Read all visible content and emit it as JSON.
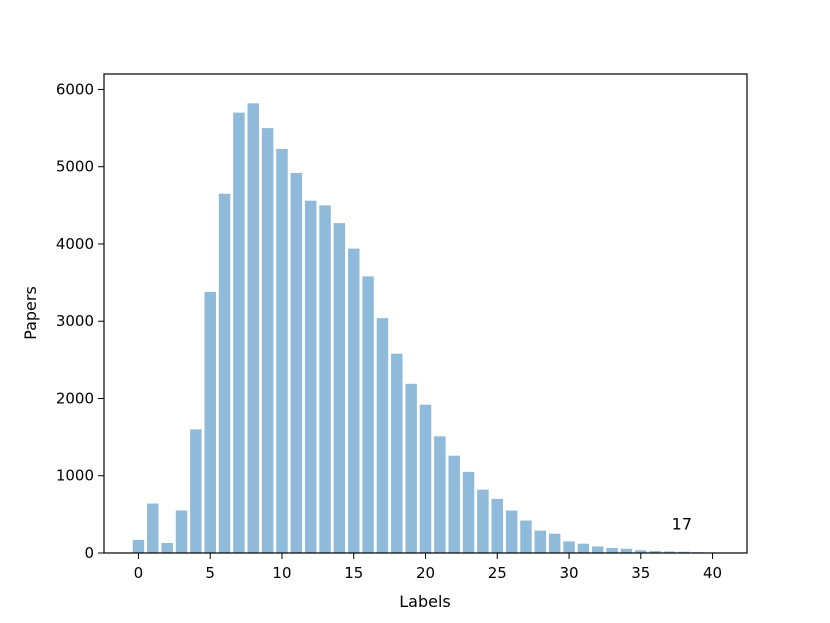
{
  "chart_data": {
    "type": "bar",
    "xlabel": "Labels",
    "ylabel": "Papers",
    "x": [
      0,
      1,
      2,
      3,
      4,
      5,
      6,
      7,
      8,
      9,
      10,
      11,
      12,
      13,
      14,
      15,
      16,
      17,
      18,
      19,
      20,
      21,
      22,
      23,
      24,
      25,
      26,
      27,
      28,
      29,
      30,
      31,
      32,
      33,
      34,
      35,
      36,
      37,
      38,
      39,
      40
    ],
    "values": [
      170,
      640,
      130,
      550,
      1600,
      3380,
      4650,
      5700,
      5820,
      5500,
      5230,
      4920,
      4560,
      4500,
      4270,
      3940,
      3580,
      3040,
      2580,
      2190,
      1920,
      1510,
      1260,
      1050,
      820,
      700,
      550,
      420,
      290,
      250,
      150,
      120,
      85,
      65,
      55,
      35,
      25,
      20,
      17,
      10,
      8
    ],
    "xlim": [
      -2.4,
      42.4
    ],
    "ylim": [
      0,
      6200
    ],
    "xticks": [
      "0",
      "5",
      "10",
      "15",
      "20",
      "25",
      "30",
      "35",
      "40"
    ],
    "yticks": [
      "0",
      "1000",
      "2000",
      "3000",
      "4000",
      "5000",
      "6000"
    ],
    "bar_color": "#8fbad9",
    "annotation": {
      "text": "17",
      "x": 38,
      "y": 17
    },
    "grid": false
  }
}
